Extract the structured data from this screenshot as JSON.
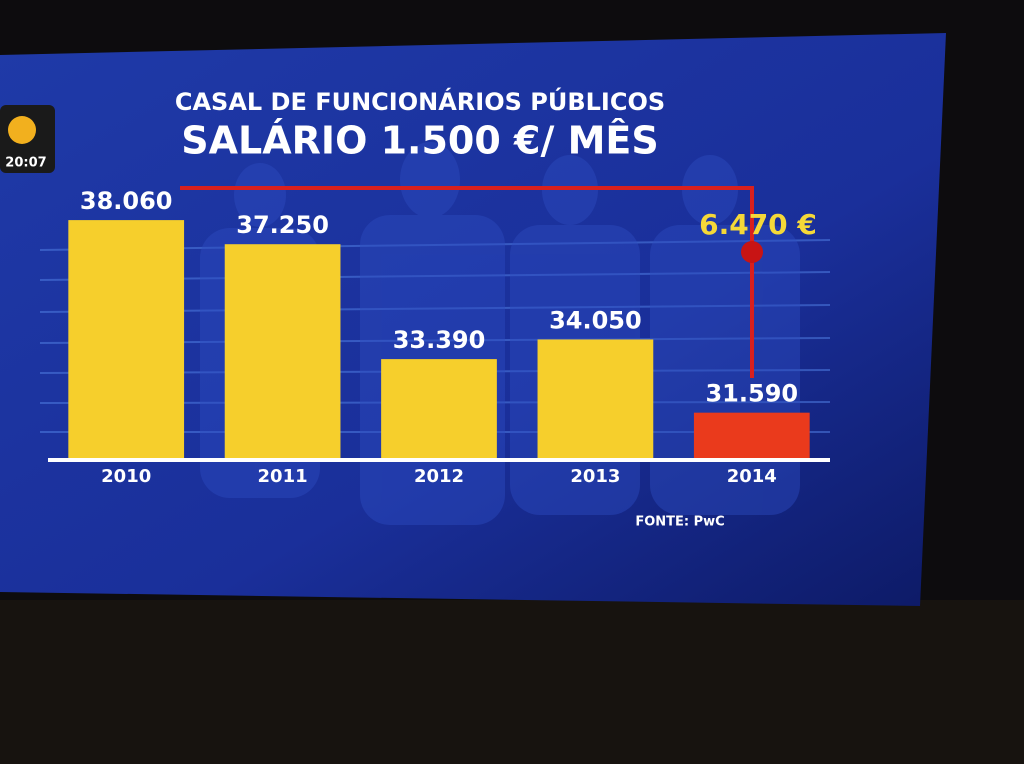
{
  "chart_data": {
    "type": "bar",
    "title": "CASAL DE FUNCIONÁRIOS PÚBLICOS",
    "subtitle": "SALÁRIO 1.500 €/ MÊS",
    "categories": [
      "2010",
      "2011",
      "2012",
      "2013",
      "2014"
    ],
    "values": [
      38060,
      37250,
      33390,
      34050,
      31590
    ],
    "value_labels": [
      "38.060",
      "37.250",
      "33.390",
      "34.050",
      "31.590"
    ],
    "colors": [
      "#f6cf2c",
      "#f6cf2c",
      "#f6cf2c",
      "#f6cf2c",
      "#ea3a1c"
    ],
    "ylim": [
      30000,
      38500
    ],
    "annotation": "6.470 €",
    "source": "FONTE: PwC",
    "clock": "20:07"
  }
}
